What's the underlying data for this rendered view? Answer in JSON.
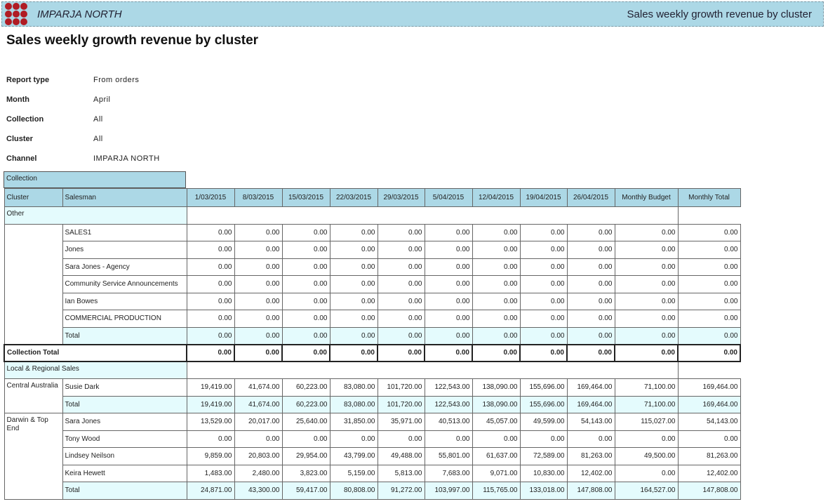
{
  "banner": {
    "brand": "IMPARJA NORTH",
    "title": "Sales weekly growth revenue by cluster"
  },
  "page_title": "Sales weekly growth revenue by cluster",
  "params": [
    {
      "label": "Report type",
      "value": "From orders"
    },
    {
      "label": "Month",
      "value": "April"
    },
    {
      "label": "Collection",
      "value": "All"
    },
    {
      "label": "Cluster",
      "value": "All"
    },
    {
      "label": "Channel",
      "value": "IMPARJA NORTH"
    }
  ],
  "table": {
    "collection_header": "Collection",
    "columns": [
      "Cluster",
      "Salesman",
      "1/03/2015",
      "8/03/2015",
      "15/03/2015",
      "22/03/2015",
      "29/03/2015",
      "5/04/2015",
      "12/04/2015",
      "19/04/2015",
      "26/04/2015",
      "Monthly Budget",
      "Monthly Total"
    ],
    "groups": [
      {
        "collection": "Other",
        "clusters": [
          {
            "cluster": "",
            "rows": [
              {
                "salesman": "SALES1",
                "values": [
                  "0.00",
                  "0.00",
                  "0.00",
                  "0.00",
                  "0.00",
                  "0.00",
                  "0.00",
                  "0.00",
                  "0.00",
                  "0.00",
                  "0.00"
                ]
              },
              {
                "salesman": "Jones",
                "values": [
                  "0.00",
                  "0.00",
                  "0.00",
                  "0.00",
                  "0.00",
                  "0.00",
                  "0.00",
                  "0.00",
                  "0.00",
                  "0.00",
                  "0.00"
                ]
              },
              {
                "salesman": "Sara Jones - Agency",
                "values": [
                  "0.00",
                  "0.00",
                  "0.00",
                  "0.00",
                  "0.00",
                  "0.00",
                  "0.00",
                  "0.00",
                  "0.00",
                  "0.00",
                  "0.00"
                ]
              },
              {
                "salesman": "Community Service Announcements",
                "values": [
                  "0.00",
                  "0.00",
                  "0.00",
                  "0.00",
                  "0.00",
                  "0.00",
                  "0.00",
                  "0.00",
                  "0.00",
                  "0.00",
                  "0.00"
                ]
              },
              {
                "salesman": "Ian Bowes",
                "values": [
                  "0.00",
                  "0.00",
                  "0.00",
                  "0.00",
                  "0.00",
                  "0.00",
                  "0.00",
                  "0.00",
                  "0.00",
                  "0.00",
                  "0.00"
                ]
              },
              {
                "salesman": "COMMERCIAL PRODUCTION",
                "values": [
                  "0.00",
                  "0.00",
                  "0.00",
                  "0.00",
                  "0.00",
                  "0.00",
                  "0.00",
                  "0.00",
                  "0.00",
                  "0.00",
                  "0.00"
                ]
              }
            ],
            "total": {
              "label": "Total",
              "values": [
                "0.00",
                "0.00",
                "0.00",
                "0.00",
                "0.00",
                "0.00",
                "0.00",
                "0.00",
                "0.00",
                "0.00",
                "0.00"
              ]
            }
          }
        ],
        "collection_total": {
          "label": "Collection Total",
          "values": [
            "0.00",
            "0.00",
            "0.00",
            "0.00",
            "0.00",
            "0.00",
            "0.00",
            "0.00",
            "0.00",
            "0.00",
            "0.00"
          ]
        }
      },
      {
        "collection": "Local & Regional Sales",
        "clusters": [
          {
            "cluster": "Central Australia",
            "rows": [
              {
                "salesman": "Susie Dark",
                "values": [
                  "19,419.00",
                  "41,674.00",
                  "60,223.00",
                  "83,080.00",
                  "101,720.00",
                  "122,543.00",
                  "138,090.00",
                  "155,696.00",
                  "169,464.00",
                  "71,100.00",
                  "169,464.00"
                ]
              }
            ],
            "total": {
              "label": "Total",
              "values": [
                "19,419.00",
                "41,674.00",
                "60,223.00",
                "83,080.00",
                "101,720.00",
                "122,543.00",
                "138,090.00",
                "155,696.00",
                "169,464.00",
                "71,100.00",
                "169,464.00"
              ]
            }
          },
          {
            "cluster": "Darwin & Top End",
            "rows": [
              {
                "salesman": "Sara Jones",
                "values": [
                  "13,529.00",
                  "20,017.00",
                  "25,640.00",
                  "31,850.00",
                  "35,971.00",
                  "40,513.00",
                  "45,057.00",
                  "49,599.00",
                  "54,143.00",
                  "115,027.00",
                  "54,143.00"
                ]
              },
              {
                "salesman": "Tony Wood",
                "values": [
                  "0.00",
                  "0.00",
                  "0.00",
                  "0.00",
                  "0.00",
                  "0.00",
                  "0.00",
                  "0.00",
                  "0.00",
                  "0.00",
                  "0.00"
                ]
              },
              {
                "salesman": "Lindsey Neilson",
                "values": [
                  "9,859.00",
                  "20,803.00",
                  "29,954.00",
                  "43,799.00",
                  "49,488.00",
                  "55,801.00",
                  "61,637.00",
                  "72,589.00",
                  "81,263.00",
                  "49,500.00",
                  "81,263.00"
                ]
              },
              {
                "salesman": "Keira Hewett",
                "values": [
                  "1,483.00",
                  "2,480.00",
                  "3,823.00",
                  "5,159.00",
                  "5,813.00",
                  "7,683.00",
                  "9,071.00",
                  "10,830.00",
                  "12,402.00",
                  "0.00",
                  "12,402.00"
                ]
              }
            ],
            "total": {
              "label": "Total",
              "values": [
                "24,871.00",
                "43,300.00",
                "59,417.00",
                "80,808.00",
                "91,272.00",
                "103,997.00",
                "115,765.00",
                "133,018.00",
                "147,808.00",
                "164,527.00",
                "147,808.00"
              ]
            }
          }
        ]
      }
    ]
  },
  "colors": {
    "header": "#acd8e6",
    "total_row": "#e4fbfd",
    "logo": "#b01c24"
  }
}
